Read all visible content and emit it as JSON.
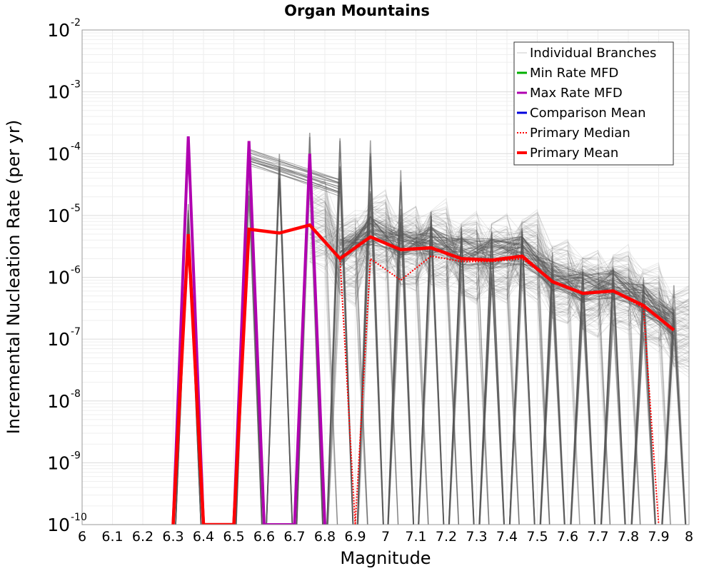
{
  "chart_data": {
    "type": "line",
    "title": "Organ Mountains",
    "xlabel": "Magnitude",
    "ylabel": "Incremental Nucleation Rate (per yr)",
    "xlim": [
      6,
      8
    ],
    "ylim": [
      1e-10,
      0.01
    ],
    "yscale": "log",
    "grid": true,
    "legend_position": "top-right",
    "x_ticks": [
      "6",
      "6.1",
      "6.2",
      "6.3",
      "6.4",
      "6.5",
      "6.6",
      "6.7",
      "6.8",
      "6.9",
      "7",
      "7.1",
      "7.2",
      "7.3",
      "7.4",
      "7.5",
      "7.6",
      "7.7",
      "7.8",
      "7.9",
      "8"
    ],
    "y_ticks": [
      {
        "base": "10",
        "exp": "-10"
      },
      {
        "base": "10",
        "exp": "-9"
      },
      {
        "base": "10",
        "exp": "-8"
      },
      {
        "base": "10",
        "exp": "-7"
      },
      {
        "base": "10",
        "exp": "-6"
      },
      {
        "base": "10",
        "exp": "-5"
      },
      {
        "base": "10",
        "exp": "-4"
      },
      {
        "base": "10",
        "exp": "-3"
      },
      {
        "base": "10",
        "exp": "-2"
      }
    ],
    "legend": [
      {
        "label": "Individual Branches",
        "color": "#c8c8c8",
        "style": "solid",
        "width": 1
      },
      {
        "label": "Min Rate MFD",
        "color": "#00b000",
        "style": "solid",
        "width": 3
      },
      {
        "label": "Max Rate MFD",
        "color": "#b000b0",
        "style": "solid",
        "width": 3
      },
      {
        "label": "Comparison Mean",
        "color": "#0000dd",
        "style": "solid",
        "width": 3
      },
      {
        "label": " Primary Median",
        "color": "#ff0000",
        "style": "dotted",
        "width": 2
      },
      {
        "label": "Primary Mean",
        "color": "#ff0000",
        "style": "solid",
        "width": 4
      }
    ],
    "series": [
      {
        "name": "Max Rate MFD",
        "color": "#b000b0",
        "x": [
          6.3,
          6.35,
          6.4,
          6.5,
          6.55,
          6.6,
          6.7,
          6.75,
          6.8
        ],
        "y": [
          1e-10,
          0.00019,
          1e-10,
          1e-10,
          0.00016,
          1e-10,
          1e-10,
          0.0001,
          1e-10
        ]
      },
      {
        "name": "Primary Median",
        "color": "#ff0000",
        "x": [
          6.3,
          6.35,
          6.4,
          6.5,
          6.55,
          6.65,
          6.75,
          6.85,
          6.9,
          6.95,
          7.05,
          7.15,
          7.25,
          7.35,
          7.45,
          7.55,
          7.65,
          7.75,
          7.85,
          7.9
        ],
        "y": [
          1e-10,
          5e-06,
          1e-10,
          1e-10,
          6e-06,
          5.2e-06,
          6.8e-06,
          2e-06,
          1e-10,
          2e-06,
          9e-07,
          2.2e-06,
          1.8e-06,
          1.8e-06,
          2e-06,
          8.5e-07,
          5.6e-07,
          6e-07,
          3.2e-07,
          1e-10
        ]
      },
      {
        "name": "Primary Mean",
        "color": "#ff0000",
        "x": [
          6.3,
          6.35,
          6.4,
          6.5,
          6.55,
          6.65,
          6.75,
          6.85,
          6.95,
          7.05,
          7.15,
          7.25,
          7.35,
          7.45,
          7.55,
          7.65,
          7.75,
          7.85,
          7.95
        ],
        "y": [
          1e-10,
          5e-06,
          1e-10,
          1e-10,
          6e-06,
          5.2e-06,
          7e-06,
          2e-06,
          4.5e-06,
          2.8e-06,
          3e-06,
          2e-06,
          1.9e-06,
          2.2e-06,
          8.5e-07,
          5.5e-07,
          6e-07,
          3.5e-07,
          1.4e-07
        ]
      }
    ]
  }
}
